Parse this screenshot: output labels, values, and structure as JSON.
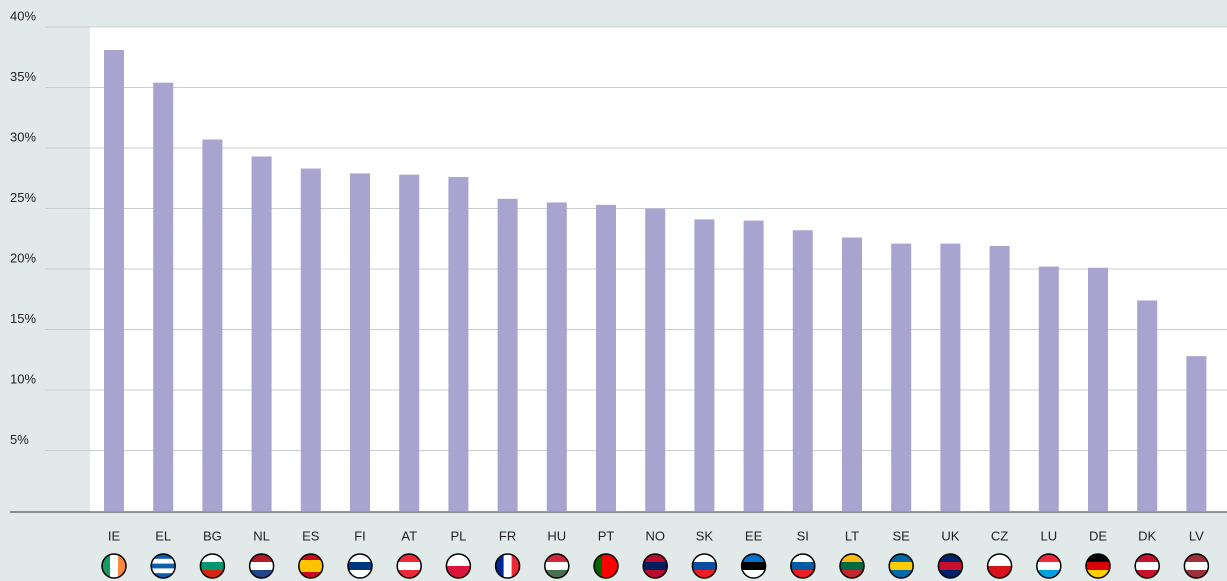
{
  "chart_data": {
    "type": "bar",
    "categories": [
      "IE",
      "EL",
      "BG",
      "NL",
      "ES",
      "FI",
      "AT",
      "PL",
      "FR",
      "HU",
      "PT",
      "NO",
      "SK",
      "EE",
      "SI",
      "LT",
      "SE",
      "UK",
      "CZ",
      "LU",
      "DE",
      "DK",
      "LV"
    ],
    "values": [
      38.1,
      35.4,
      30.7,
      29.3,
      28.3,
      27.9,
      27.8,
      27.6,
      25.8,
      25.5,
      25.3,
      25.0,
      24.1,
      24.0,
      23.2,
      22.6,
      22.1,
      22.1,
      21.9,
      20.2,
      20.1,
      17.4,
      12.8
    ],
    "color": "#a9a3cf",
    "ylim": [
      0,
      40
    ],
    "yticks": [
      {
        "value": 5,
        "label": "5%"
      },
      {
        "value": 10,
        "label": "10%"
      },
      {
        "value": 15,
        "label": "15%"
      },
      {
        "value": 20,
        "label": "20%"
      },
      {
        "value": 25,
        "label": "25%"
      },
      {
        "value": 30,
        "label": "30%"
      },
      {
        "value": 35,
        "label": "35%"
      },
      {
        "value": 40,
        "label": "40%"
      }
    ],
    "grid": true
  }
}
